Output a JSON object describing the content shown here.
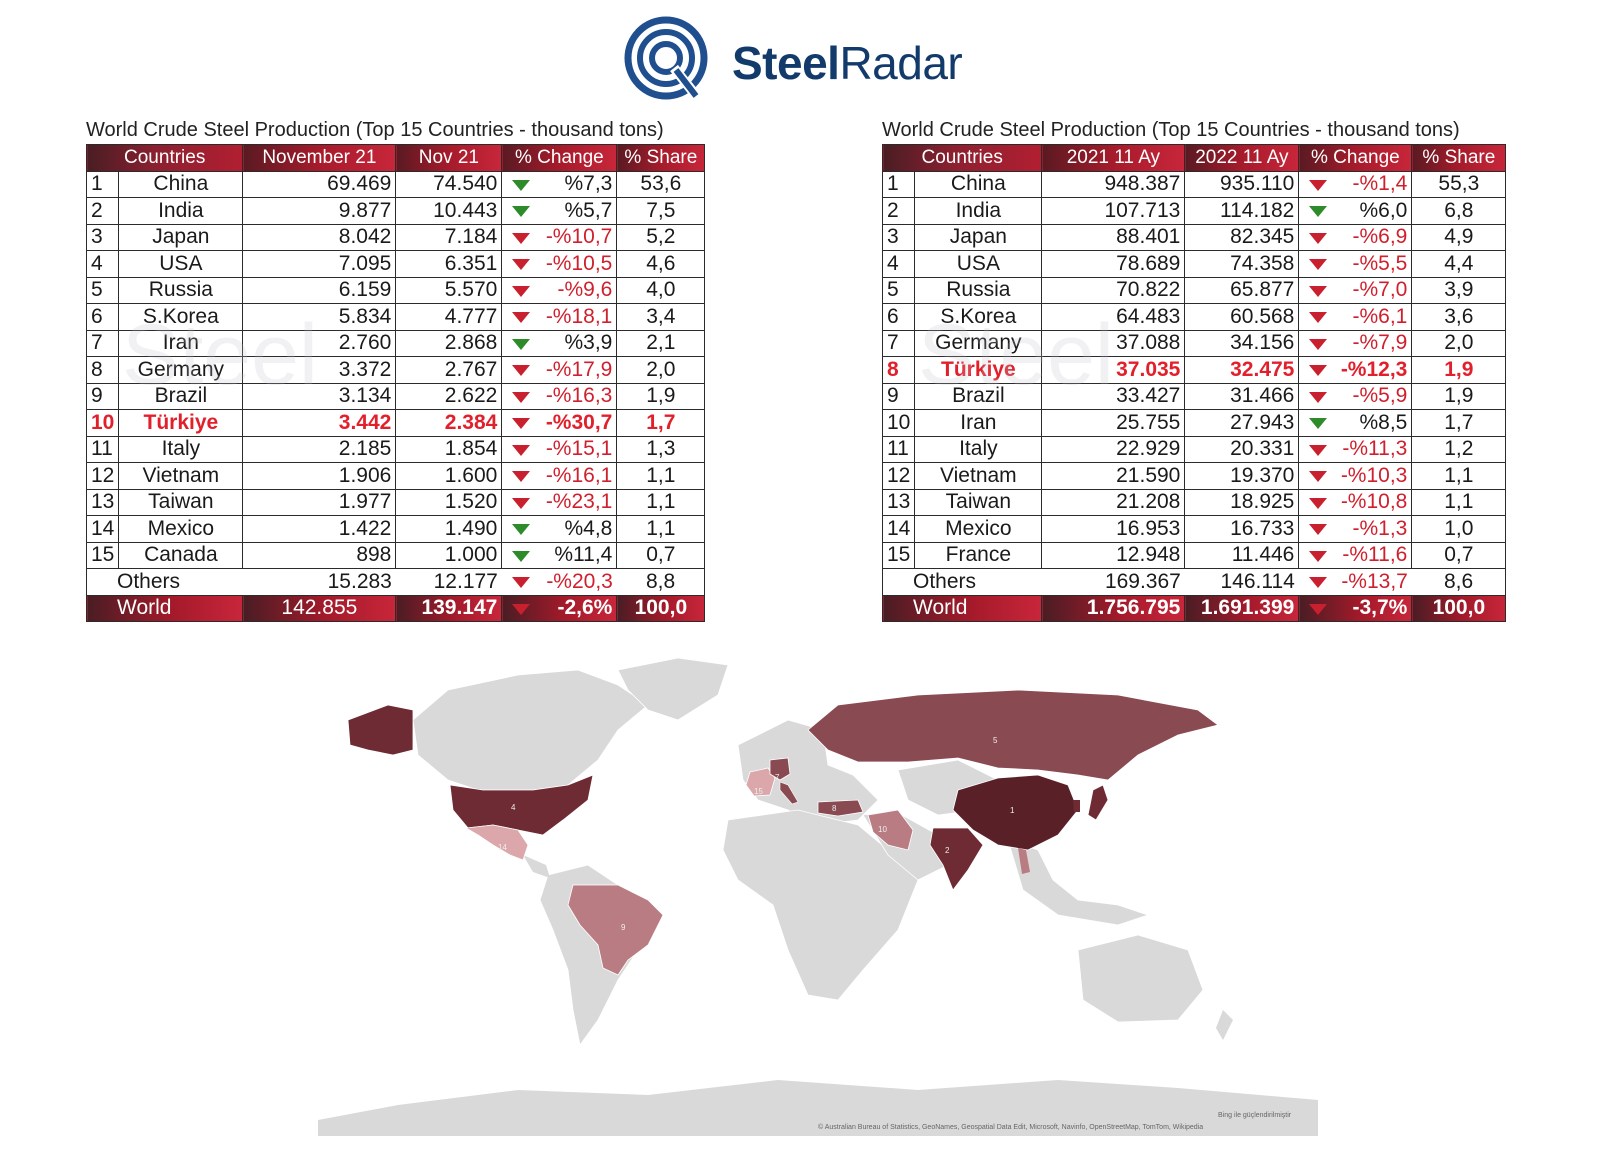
{
  "brand": {
    "name_bold": "Steel",
    "name_light": "Radar"
  },
  "chart_data": [
    {
      "type": "table",
      "title": "World Crude Steel Production (Top 15 Countries - thousand tons)",
      "columns": [
        "Countries",
        "November 21",
        "Nov 21",
        "% Change",
        "% Share"
      ],
      "rows": [
        {
          "rank": "1",
          "country": "China",
          "a": "69.469",
          "b": "74.540",
          "change": "%7,3",
          "dir": "up",
          "share": "53,6"
        },
        {
          "rank": "2",
          "country": "India",
          "a": "9.877",
          "b": "10.443",
          "change": "%5,7",
          "dir": "up",
          "share": "7,5"
        },
        {
          "rank": "3",
          "country": "Japan",
          "a": "8.042",
          "b": "7.184",
          "change": "-%10,7",
          "dir": "down",
          "share": "5,2"
        },
        {
          "rank": "4",
          "country": "USA",
          "a": "7.095",
          "b": "6.351",
          "change": "-%10,5",
          "dir": "down",
          "share": "4,6"
        },
        {
          "rank": "5",
          "country": "Russia",
          "a": "6.159",
          "b": "5.570",
          "change": "-%9,6",
          "dir": "down",
          "share": "4,0"
        },
        {
          "rank": "6",
          "country": "S.Korea",
          "a": "5.834",
          "b": "4.777",
          "change": "-%18,1",
          "dir": "down",
          "share": "3,4"
        },
        {
          "rank": "7",
          "country": "Iran",
          "a": "2.760",
          "b": "2.868",
          "change": "%3,9",
          "dir": "up",
          "share": "2,1"
        },
        {
          "rank": "8",
          "country": "Germany",
          "a": "3.372",
          "b": "2.767",
          "change": "-%17,9",
          "dir": "down",
          "share": "2,0"
        },
        {
          "rank": "9",
          "country": "Brazil",
          "a": "3.134",
          "b": "2.622",
          "change": "-%16,3",
          "dir": "down",
          "share": "1,9"
        },
        {
          "rank": "10",
          "country": "Türkiye",
          "a": "3.442",
          "b": "2.384",
          "change": "-%30,7",
          "dir": "down",
          "share": "1,7",
          "highlight": true
        },
        {
          "rank": "11",
          "country": "Italy",
          "a": "2.185",
          "b": "1.854",
          "change": "-%15,1",
          "dir": "down",
          "share": "1,3"
        },
        {
          "rank": "12",
          "country": "Vietnam",
          "a": "1.906",
          "b": "1.600",
          "change": "-%16,1",
          "dir": "down",
          "share": "1,1"
        },
        {
          "rank": "13",
          "country": "Taiwan",
          "a": "1.977",
          "b": "1.520",
          "change": "-%23,1",
          "dir": "down",
          "share": "1,1"
        },
        {
          "rank": "14",
          "country": "Mexico",
          "a": "1.422",
          "b": "1.490",
          "change": "%4,8",
          "dir": "up",
          "share": "1,1"
        },
        {
          "rank": "15",
          "country": "Canada",
          "a": "898",
          "b": "1.000",
          "change": "%11,4",
          "dir": "up",
          "share": "0,7"
        }
      ],
      "others": {
        "label": "Others",
        "a": "15.283",
        "b": "12.177",
        "change": "-%20,3",
        "dir": "down",
        "share": "8,8"
      },
      "world": {
        "label": "World",
        "a": "142.855",
        "b": "139.147",
        "change": "-2,6%",
        "dir": "down",
        "share": "100,0"
      }
    },
    {
      "type": "table",
      "title": "World Crude Steel Production (Top 15 Countries - thousand tons)",
      "columns": [
        "Countries",
        "2021 11 Ay",
        "2022 11 Ay",
        "% Change",
        "% Share"
      ],
      "rows": [
        {
          "rank": "1",
          "country": "China",
          "a": "948.387",
          "b": "935.110",
          "change": "-%1,4",
          "dir": "down",
          "share": "55,3"
        },
        {
          "rank": "2",
          "country": "India",
          "a": "107.713",
          "b": "114.182",
          "change": "%6,0",
          "dir": "up",
          "share": "6,8"
        },
        {
          "rank": "3",
          "country": "Japan",
          "a": "88.401",
          "b": "82.345",
          "change": "-%6,9",
          "dir": "down",
          "share": "4,9"
        },
        {
          "rank": "4",
          "country": "USA",
          "a": "78.689",
          "b": "74.358",
          "change": "-%5,5",
          "dir": "down",
          "share": "4,4"
        },
        {
          "rank": "5",
          "country": "Russia",
          "a": "70.822",
          "b": "65.877",
          "change": "-%7,0",
          "dir": "down",
          "share": "3,9"
        },
        {
          "rank": "6",
          "country": "S.Korea",
          "a": "64.483",
          "b": "60.568",
          "change": "-%6,1",
          "dir": "down",
          "share": "3,6"
        },
        {
          "rank": "7",
          "country": "Germany",
          "a": "37.088",
          "b": "34.156",
          "change": "-%7,9",
          "dir": "down",
          "share": "2,0"
        },
        {
          "rank": "8",
          "country": "Türkiye",
          "a": "37.035",
          "b": "32.475",
          "change": "-%12,3",
          "dir": "down",
          "share": "1,9",
          "highlight": true
        },
        {
          "rank": "9",
          "country": "Brazil",
          "a": "33.427",
          "b": "31.466",
          "change": "-%5,9",
          "dir": "down",
          "share": "1,9"
        },
        {
          "rank": "10",
          "country": "Iran",
          "a": "25.755",
          "b": "27.943",
          "change": "%8,5",
          "dir": "up",
          "share": "1,7"
        },
        {
          "rank": "11",
          "country": "Italy",
          "a": "22.929",
          "b": "20.331",
          "change": "-%11,3",
          "dir": "down",
          "share": "1,2"
        },
        {
          "rank": "12",
          "country": "Vietnam",
          "a": "21.590",
          "b": "19.370",
          "change": "-%10,3",
          "dir": "down",
          "share": "1,1"
        },
        {
          "rank": "13",
          "country": "Taiwan",
          "a": "21.208",
          "b": "18.925",
          "change": "-%10,8",
          "dir": "down",
          "share": "1,1"
        },
        {
          "rank": "14",
          "country": "Mexico",
          "a": "16.953",
          "b": "16.733",
          "change": "-%1,3",
          "dir": "down",
          "share": "1,0"
        },
        {
          "rank": "15",
          "country": "France",
          "a": "12.948",
          "b": "11.446",
          "change": "-%11,6",
          "dir": "down",
          "share": "0,7"
        }
      ],
      "others": {
        "label": "Others",
        "a": "169.367",
        "b": "146.114",
        "change": "-%13,7",
        "dir": "down",
        "share": "8,6"
      },
      "world": {
        "label": "World",
        "a": "1.756.795",
        "b": "1.691.399",
        "change": "-3,7%",
        "dir": "down",
        "share": "100,0"
      }
    }
  ],
  "map": {
    "labels": {
      "china": "1",
      "india": "2",
      "usa": "4",
      "russia": "5",
      "germany": "7",
      "turkiye": "8",
      "brazil": "9",
      "iran": "10",
      "mexico": "14",
      "france": "15"
    },
    "colors": {
      "base": "#d9d9d9",
      "dark": "#6e2b33",
      "mid": "#8a4a52",
      "light": "#b97c82",
      "pale": "#dba7ab"
    },
    "credit_bing": "Bing ile güçlendirilmiştir",
    "credit_sources": "© Australian Bureau of Statistics, GeoNames, Geospatial Data Edit, Microsoft, Navinfo, OpenStreetMap, TomTom, Wikipedia"
  },
  "colors": {
    "red": "#d0202e",
    "green": "#2e8b2a",
    "navy": "#123a6b"
  }
}
